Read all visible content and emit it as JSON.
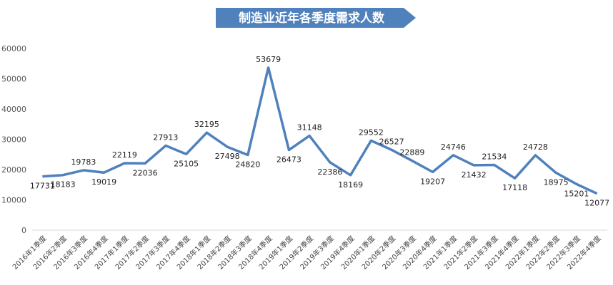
{
  "chart_data": {
    "type": "line",
    "title": "制造业近年各季度需求人数",
    "xlabel": "",
    "ylabel": "",
    "ylim": [
      0,
      60000
    ],
    "yticks": [
      0,
      10000,
      20000,
      30000,
      40000,
      50000,
      60000
    ],
    "grid": false,
    "legend": "none",
    "line_color": "#4f81bd",
    "title_bg_color": "#4f81bd",
    "categories": [
      "2016年1季度",
      "2016年2季度",
      "2016年3季度",
      "2016年4季度",
      "2017年1季度",
      "2017年2季度",
      "2017年3季度",
      "2017年4季度",
      "2018年1季度",
      "2018年2季度",
      "2018年3季度",
      "2018年4季度",
      "2019年1季度",
      "2019年2季度",
      "2019年3季度",
      "2019年4季度",
      "2020年1季度",
      "2020年2季度",
      "2020年3季度",
      "2020年4季度",
      "2021年1季度",
      "2021年2季度",
      "2021年3季度",
      "2021年4季度",
      "2022年1季度",
      "2022年2季度",
      "2022年3季度",
      "2022年4季度"
    ],
    "values": [
      17731,
      18183,
      19783,
      19019,
      22119,
      22036,
      27913,
      25105,
      32195,
      27498,
      24820,
      53679,
      26473,
      31148,
      22386,
      18169,
      29552,
      26527,
      22889,
      19207,
      24746,
      21432,
      21534,
      17118,
      24728,
      18975,
      15201,
      12077
    ]
  }
}
